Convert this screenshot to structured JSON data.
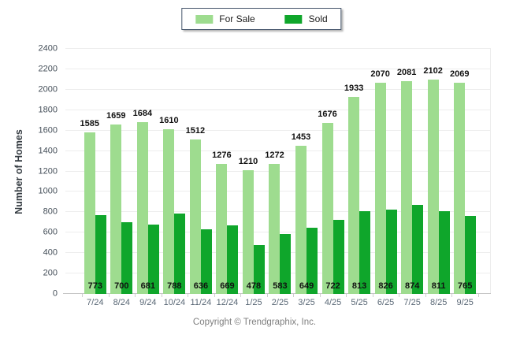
{
  "chart_data": {
    "type": "bar",
    "title": "",
    "categories": [
      "7/24",
      "8/24",
      "9/24",
      "10/24",
      "11/24",
      "12/24",
      "1/25",
      "2/25",
      "3/25",
      "4/25",
      "5/25",
      "6/25",
      "7/25",
      "8/25",
      "9/25"
    ],
    "series": [
      {
        "name": "For Sale",
        "color": "#9edc8f",
        "values": [
          1585,
          1659,
          1684,
          1610,
          1512,
          1276,
          1210,
          1272,
          1453,
          1676,
          1933,
          2070,
          2081,
          2102,
          2069
        ]
      },
      {
        "name": "Sold",
        "color": "#0fa62b",
        "values": [
          773,
          700,
          681,
          788,
          636,
          669,
          478,
          583,
          649,
          722,
          813,
          826,
          874,
          811,
          765
        ]
      }
    ],
    "xlabel": "",
    "ylabel": "Number of Homes",
    "ylim": [
      0,
      2400
    ],
    "ytick_step": 200,
    "yticks": [
      0,
      200,
      400,
      600,
      800,
      1000,
      1200,
      1400,
      1600,
      1800,
      2000,
      2200,
      2400
    ],
    "grid": "horizontal",
    "legend_position": "top-center",
    "value_label_style": "bold-black"
  },
  "legend": {
    "items": [
      {
        "label": "For Sale",
        "swatch_color": "#9edc8f"
      },
      {
        "label": "Sold",
        "swatch_color": "#0fa62b"
      }
    ]
  },
  "footer": {
    "copyright": "Copyright © Trendgraphix, Inc."
  },
  "colors": {
    "for_sale": "#9edc8f",
    "sold": "#0fa62b",
    "gridline": "#ededed",
    "axis_line": "#c4c4c4",
    "x_tick_label": "#5a6876",
    "y_tick_label": "#444e58",
    "value_label": "#111111",
    "legend_border": "#44546a",
    "copyright_text": "#7f7f7f"
  }
}
